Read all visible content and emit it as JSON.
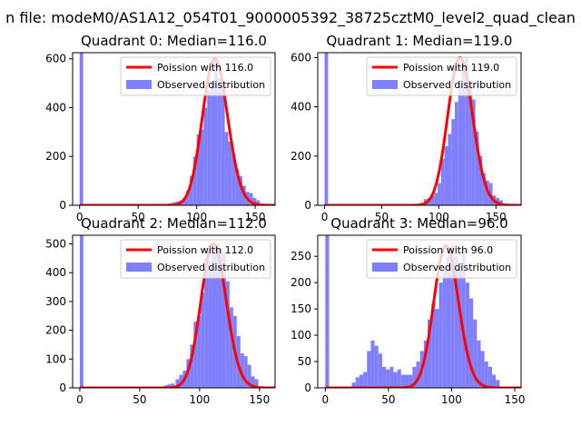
{
  "figure": {
    "suptitle": "n file: modeM0/AS1A12_054T01_9000005392_38725cztM0_level2_quad_clean"
  },
  "colors": {
    "poisson": "#ff0000",
    "observed": "#8080ff",
    "axis": "#000000",
    "background": "#ffffff"
  },
  "chart_data": [
    {
      "type": "bar",
      "title": "Quadrant 0: Median=116.0",
      "median": 116.0,
      "xlim": [
        -6,
        167
      ],
      "ylim": [
        0,
        625
      ],
      "xticks": [
        0,
        50,
        100,
        150
      ],
      "yticks": [
        0,
        200,
        400,
        600
      ],
      "legend": [
        "Poission with 116.0",
        "Observed distribution"
      ],
      "legend_position": "top-right",
      "histogram": [
        {
          "x": 0,
          "y": 625
        },
        {
          "x": 76,
          "y": 8
        },
        {
          "x": 79,
          "y": 12
        },
        {
          "x": 82,
          "y": 15
        },
        {
          "x": 85,
          "y": 20
        },
        {
          "x": 88,
          "y": 30
        },
        {
          "x": 91,
          "y": 60
        },
        {
          "x": 94,
          "y": 120
        },
        {
          "x": 97,
          "y": 200
        },
        {
          "x": 100,
          "y": 290
        },
        {
          "x": 103,
          "y": 310
        },
        {
          "x": 106,
          "y": 400
        },
        {
          "x": 109,
          "y": 470
        },
        {
          "x": 112,
          "y": 510
        },
        {
          "x": 115,
          "y": 600
        },
        {
          "x": 118,
          "y": 520
        },
        {
          "x": 121,
          "y": 470
        },
        {
          "x": 124,
          "y": 300
        },
        {
          "x": 127,
          "y": 260
        },
        {
          "x": 130,
          "y": 210
        },
        {
          "x": 133,
          "y": 150
        },
        {
          "x": 136,
          "y": 120
        },
        {
          "x": 139,
          "y": 80
        },
        {
          "x": 142,
          "y": 55
        },
        {
          "x": 145,
          "y": 50
        },
        {
          "x": 148,
          "y": 30
        },
        {
          "x": 151,
          "y": 20
        },
        {
          "x": 154,
          "y": 8
        }
      ]
    },
    {
      "type": "bar",
      "title": "Quadrant 1: Median=119.0",
      "median": 119.0,
      "xlim": [
        -6,
        172
      ],
      "ylim": [
        0,
        620
      ],
      "xticks": [
        0,
        50,
        100,
        150
      ],
      "yticks": [
        0,
        200,
        400,
        600
      ],
      "legend": [
        "Poission with 119.0",
        "Observed distribution"
      ],
      "legend_position": "top-right",
      "histogram": [
        {
          "x": 0,
          "y": 620
        },
        {
          "x": 83,
          "y": 10
        },
        {
          "x": 87,
          "y": 25
        },
        {
          "x": 90,
          "y": 30
        },
        {
          "x": 93,
          "y": 40
        },
        {
          "x": 96,
          "y": 50
        },
        {
          "x": 99,
          "y": 90
        },
        {
          "x": 102,
          "y": 190
        },
        {
          "x": 105,
          "y": 240
        },
        {
          "x": 108,
          "y": 290
        },
        {
          "x": 111,
          "y": 350
        },
        {
          "x": 114,
          "y": 420
        },
        {
          "x": 117,
          "y": 490
        },
        {
          "x": 120,
          "y": 560
        },
        {
          "x": 123,
          "y": 600
        },
        {
          "x": 126,
          "y": 490
        },
        {
          "x": 129,
          "y": 430
        },
        {
          "x": 132,
          "y": 300
        },
        {
          "x": 135,
          "y": 200
        },
        {
          "x": 138,
          "y": 130
        },
        {
          "x": 141,
          "y": 100
        },
        {
          "x": 144,
          "y": 90
        },
        {
          "x": 147,
          "y": 40
        },
        {
          "x": 150,
          "y": 30
        },
        {
          "x": 153,
          "y": 20
        }
      ]
    },
    {
      "type": "bar",
      "title": "Quadrant 2: Median=112.0",
      "median": 112.0,
      "xlim": [
        -6,
        163
      ],
      "ylim": [
        0,
        530
      ],
      "xticks": [
        0,
        50,
        100,
        150
      ],
      "yticks": [
        0,
        100,
        200,
        300,
        400,
        500
      ],
      "legend": [
        "Poission with 112.0",
        "Observed distribution"
      ],
      "legend_position": "top-right",
      "histogram": [
        {
          "x": 0,
          "y": 530
        },
        {
          "x": 70,
          "y": 8
        },
        {
          "x": 73,
          "y": 12
        },
        {
          "x": 76,
          "y": 15
        },
        {
          "x": 80,
          "y": 30
        },
        {
          "x": 83,
          "y": 45
        },
        {
          "x": 86,
          "y": 60
        },
        {
          "x": 89,
          "y": 100
        },
        {
          "x": 92,
          "y": 150
        },
        {
          "x": 95,
          "y": 230
        },
        {
          "x": 98,
          "y": 250
        },
        {
          "x": 101,
          "y": 330
        },
        {
          "x": 104,
          "y": 450
        },
        {
          "x": 107,
          "y": 440
        },
        {
          "x": 110,
          "y": 480
        },
        {
          "x": 113,
          "y": 500
        },
        {
          "x": 116,
          "y": 480
        },
        {
          "x": 119,
          "y": 470
        },
        {
          "x": 122,
          "y": 370
        },
        {
          "x": 125,
          "y": 280
        },
        {
          "x": 128,
          "y": 250
        },
        {
          "x": 131,
          "y": 180
        },
        {
          "x": 134,
          "y": 120
        },
        {
          "x": 137,
          "y": 110
        },
        {
          "x": 140,
          "y": 80
        },
        {
          "x": 143,
          "y": 40
        },
        {
          "x": 146,
          "y": 30
        }
      ]
    },
    {
      "type": "bar",
      "title": "Quadrant 3: Median=96.0",
      "median": 96.0,
      "xlim": [
        -6,
        155
      ],
      "ylim": [
        0,
        290
      ],
      "xticks": [
        0,
        50,
        100,
        150
      ],
      "yticks": [
        0,
        50,
        100,
        150,
        200,
        250
      ],
      "legend": [
        "Poission with 96.0",
        "Observed distribution"
      ],
      "legend_position": "top-right",
      "histogram": [
        {
          "x": 0,
          "y": 290
        },
        {
          "x": 21,
          "y": 10
        },
        {
          "x": 24,
          "y": 20
        },
        {
          "x": 27,
          "y": 25
        },
        {
          "x": 30,
          "y": 30
        },
        {
          "x": 33,
          "y": 70
        },
        {
          "x": 36,
          "y": 90
        },
        {
          "x": 39,
          "y": 80
        },
        {
          "x": 42,
          "y": 65
        },
        {
          "x": 45,
          "y": 40
        },
        {
          "x": 48,
          "y": 35
        },
        {
          "x": 51,
          "y": 40
        },
        {
          "x": 54,
          "y": 30
        },
        {
          "x": 57,
          "y": 35
        },
        {
          "x": 60,
          "y": 25
        },
        {
          "x": 63,
          "y": 25
        },
        {
          "x": 66,
          "y": 25
        },
        {
          "x": 69,
          "y": 40
        },
        {
          "x": 72,
          "y": 50
        },
        {
          "x": 75,
          "y": 70
        },
        {
          "x": 78,
          "y": 90
        },
        {
          "x": 81,
          "y": 130
        },
        {
          "x": 84,
          "y": 160
        },
        {
          "x": 87,
          "y": 150
        },
        {
          "x": 90,
          "y": 200
        },
        {
          "x": 93,
          "y": 230
        },
        {
          "x": 96,
          "y": 250
        },
        {
          "x": 99,
          "y": 270
        },
        {
          "x": 102,
          "y": 250
        },
        {
          "x": 105,
          "y": 230
        },
        {
          "x": 108,
          "y": 260
        },
        {
          "x": 111,
          "y": 200
        },
        {
          "x": 114,
          "y": 170
        },
        {
          "x": 117,
          "y": 130
        },
        {
          "x": 120,
          "y": 90
        },
        {
          "x": 123,
          "y": 70
        },
        {
          "x": 126,
          "y": 50
        },
        {
          "x": 129,
          "y": 40
        },
        {
          "x": 132,
          "y": 25
        },
        {
          "x": 135,
          "y": 15
        }
      ]
    }
  ]
}
